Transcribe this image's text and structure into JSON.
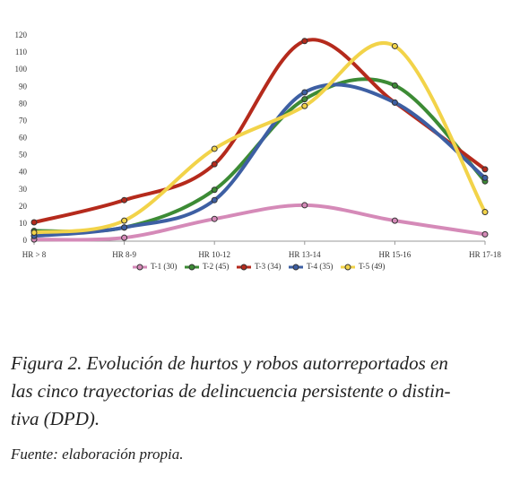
{
  "chart_data": {
    "type": "line",
    "smooth": true,
    "categories": [
      "HR > 8",
      "HR 8-9",
      "HR 10-12",
      "HR 13-14",
      "HR 15-16",
      "HR 17-18"
    ],
    "series": [
      {
        "name": "T-1 (30)",
        "color": "#d58ab8",
        "values": [
          1,
          2,
          13,
          21,
          12,
          4
        ]
      },
      {
        "name": "T-2 (45)",
        "color": "#3c8b35",
        "values": [
          6,
          8,
          30,
          83,
          91,
          35
        ]
      },
      {
        "name": "T-3 (34)",
        "color": "#b52a1c",
        "values": [
          11,
          24,
          45,
          117,
          81,
          42
        ]
      },
      {
        "name": "T-4 (35)",
        "color": "#3d5fa3",
        "values": [
          3,
          8,
          24,
          87,
          81,
          37
        ]
      },
      {
        "name": "T-5 (49)",
        "color": "#f2d349",
        "values": [
          5,
          12,
          54,
          79,
          114,
          17
        ]
      }
    ],
    "ylim": [
      0,
      120
    ],
    "yticks": [
      0,
      10,
      20,
      30,
      40,
      50,
      60,
      70,
      80,
      90,
      100,
      110,
      120
    ],
    "grid": false
  },
  "caption": {
    "lines": [
      "Figura 2. Evolución de hurtos y robos autorreportados en",
      "las cinco trayectorias de delincuencia persistente o distin-",
      "tiva (DPD)."
    ],
    "source": "Fuente: elaboración propia."
  }
}
